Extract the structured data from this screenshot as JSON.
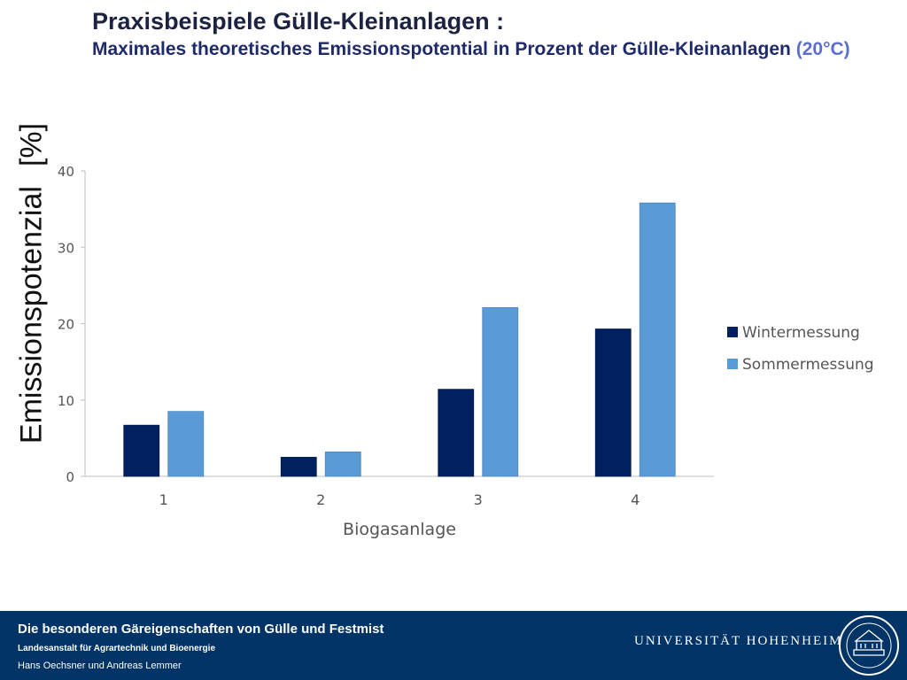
{
  "header": {
    "title": "Praxisbeispiele Gülle-Kleinanlagen :",
    "subtitle": "Maximales theoretisches Emissionspotential in Prozent der Gülle-Kleinanlagen",
    "subtitle_highlight": "(20°C)"
  },
  "y_axis_title": {
    "label": "Emissionspotenzial",
    "unit": "[%]"
  },
  "chart_data": {
    "type": "bar",
    "title": "",
    "xlabel": "Biogasanlage",
    "ylabel": "Emissionspotenzial [%]",
    "categories": [
      "1",
      "2",
      "3",
      "4"
    ],
    "series": [
      {
        "name": "Wintermessung",
        "values": [
          6.7,
          2.5,
          11.4,
          19.3
        ],
        "color": "#002060"
      },
      {
        "name": "Sommermessung",
        "values": [
          8.5,
          3.2,
          22.1,
          35.8
        ],
        "color": "#5b9bd5"
      }
    ],
    "ylim": [
      0,
      40
    ],
    "yticks": [
      0,
      10,
      20,
      30,
      40
    ],
    "grid": false,
    "legend_position": "right"
  },
  "footer": {
    "title": "Die besonderen Gäreigenschaften von Gülle und Festmist",
    "institute": "Landesanstalt für Agrartechnik und Bioenergie",
    "authors": "Hans Oechsner  und  Andreas Lemmer",
    "university": "UNIVERSITÄT HOHENHEIM",
    "colors": {
      "background": "#003366",
      "text": "#ffffff"
    }
  }
}
